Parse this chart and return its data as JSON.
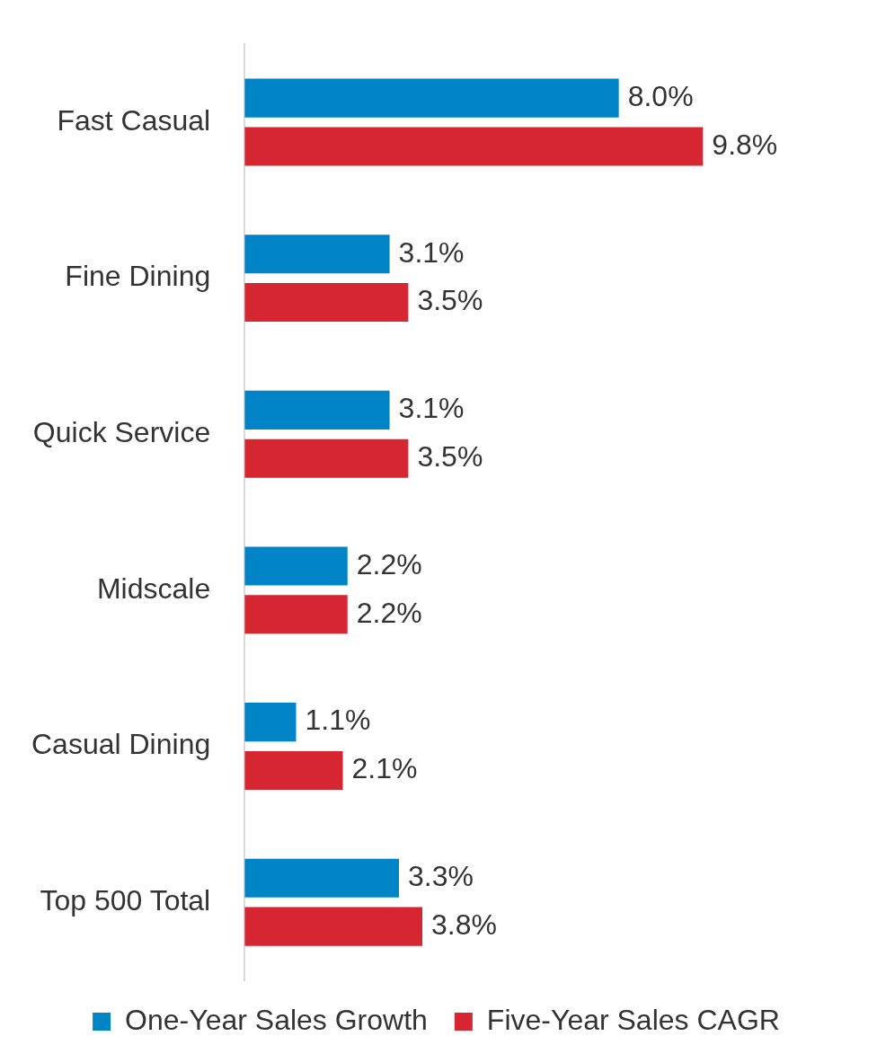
{
  "chart_data": {
    "type": "bar",
    "orientation": "horizontal",
    "categories": [
      "Fast Casual",
      "Fine Dining",
      "Quick Service",
      "Midscale",
      "Casual Dining",
      "Top 500 Total"
    ],
    "series": [
      {
        "name": "One-Year Sales Growth",
        "color": "#0084c8",
        "values": [
          8.0,
          3.1,
          3.1,
          2.2,
          1.1,
          3.3
        ],
        "value_labels": [
          "8.0%",
          "3.1%",
          "3.1%",
          "2.2%",
          "1.1%",
          "3.3%"
        ]
      },
      {
        "name": "Five-Year Sales CAGR",
        "color": "#d52631",
        "values": [
          9.8,
          3.5,
          3.5,
          2.2,
          2.1,
          3.8
        ],
        "value_labels": [
          "9.8%",
          "3.5%",
          "3.5%",
          "2.2%",
          "2.1%",
          "3.8%"
        ]
      }
    ],
    "grid": false,
    "legend": "bottom",
    "tick_labels": "y"
  }
}
